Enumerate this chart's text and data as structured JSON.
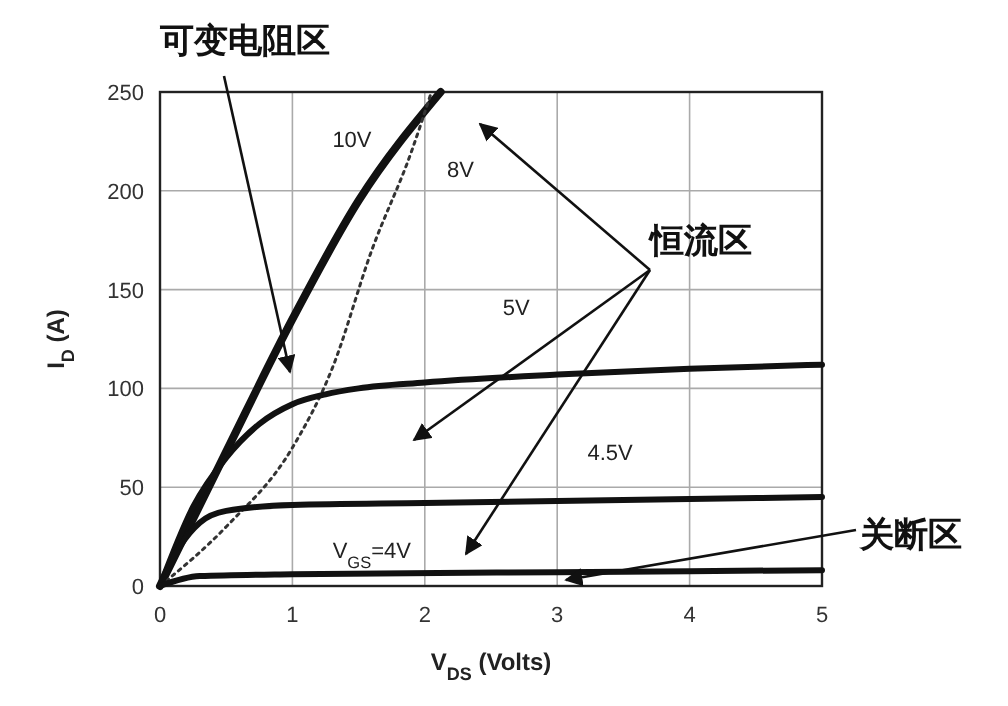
{
  "chart_data": {
    "type": "line",
    "xlabel": "V$_{DS}$ (Volts)",
    "ylabel": "I$_{D}$ (A)",
    "xlim": [
      0,
      5
    ],
    "ylim": [
      0,
      250
    ],
    "xticks": [
      0,
      1,
      2,
      3,
      4,
      5
    ],
    "yticks": [
      0,
      50,
      100,
      150,
      200,
      250
    ],
    "grid": true,
    "marker": "none",
    "annotations": [
      "可变电阻区",
      "恒流区",
      "关断区"
    ],
    "series": [
      {
        "name": "10V",
        "color": "#111111",
        "x": [
          0,
          0.5,
          1,
          1.5,
          2.12
        ],
        "values": [
          0,
          68,
          135,
          195,
          250
        ]
      },
      {
        "name": "8V",
        "color": "#333333",
        "line_style": "dotted",
        "x": [
          0,
          0.5,
          1,
          1.3,
          1.6,
          1.9,
          2.05
        ],
        "values": [
          0,
          30,
          70,
          110,
          170,
          220,
          250
        ]
      },
      {
        "name": "5V",
        "color": "#111111",
        "x": [
          0,
          0.25,
          0.5,
          0.75,
          1,
          1.25,
          1.5,
          2,
          3,
          4,
          5
        ],
        "values": [
          0,
          40,
          65,
          82,
          92,
          97,
          100,
          103,
          107,
          110,
          112
        ]
      },
      {
        "name": "4.5V",
        "color": "#111111",
        "x": [
          0,
          0.15,
          0.3,
          0.5,
          1,
          2,
          3,
          4,
          5
        ],
        "values": [
          0,
          20,
          32,
          38,
          41,
          42,
          43,
          44,
          45
        ]
      },
      {
        "name": "V$_{GS}$=4V",
        "color": "#111111",
        "x": [
          0,
          0.3,
          1,
          3,
          5
        ],
        "values": [
          0,
          5,
          6,
          7,
          8
        ]
      }
    ]
  }
}
